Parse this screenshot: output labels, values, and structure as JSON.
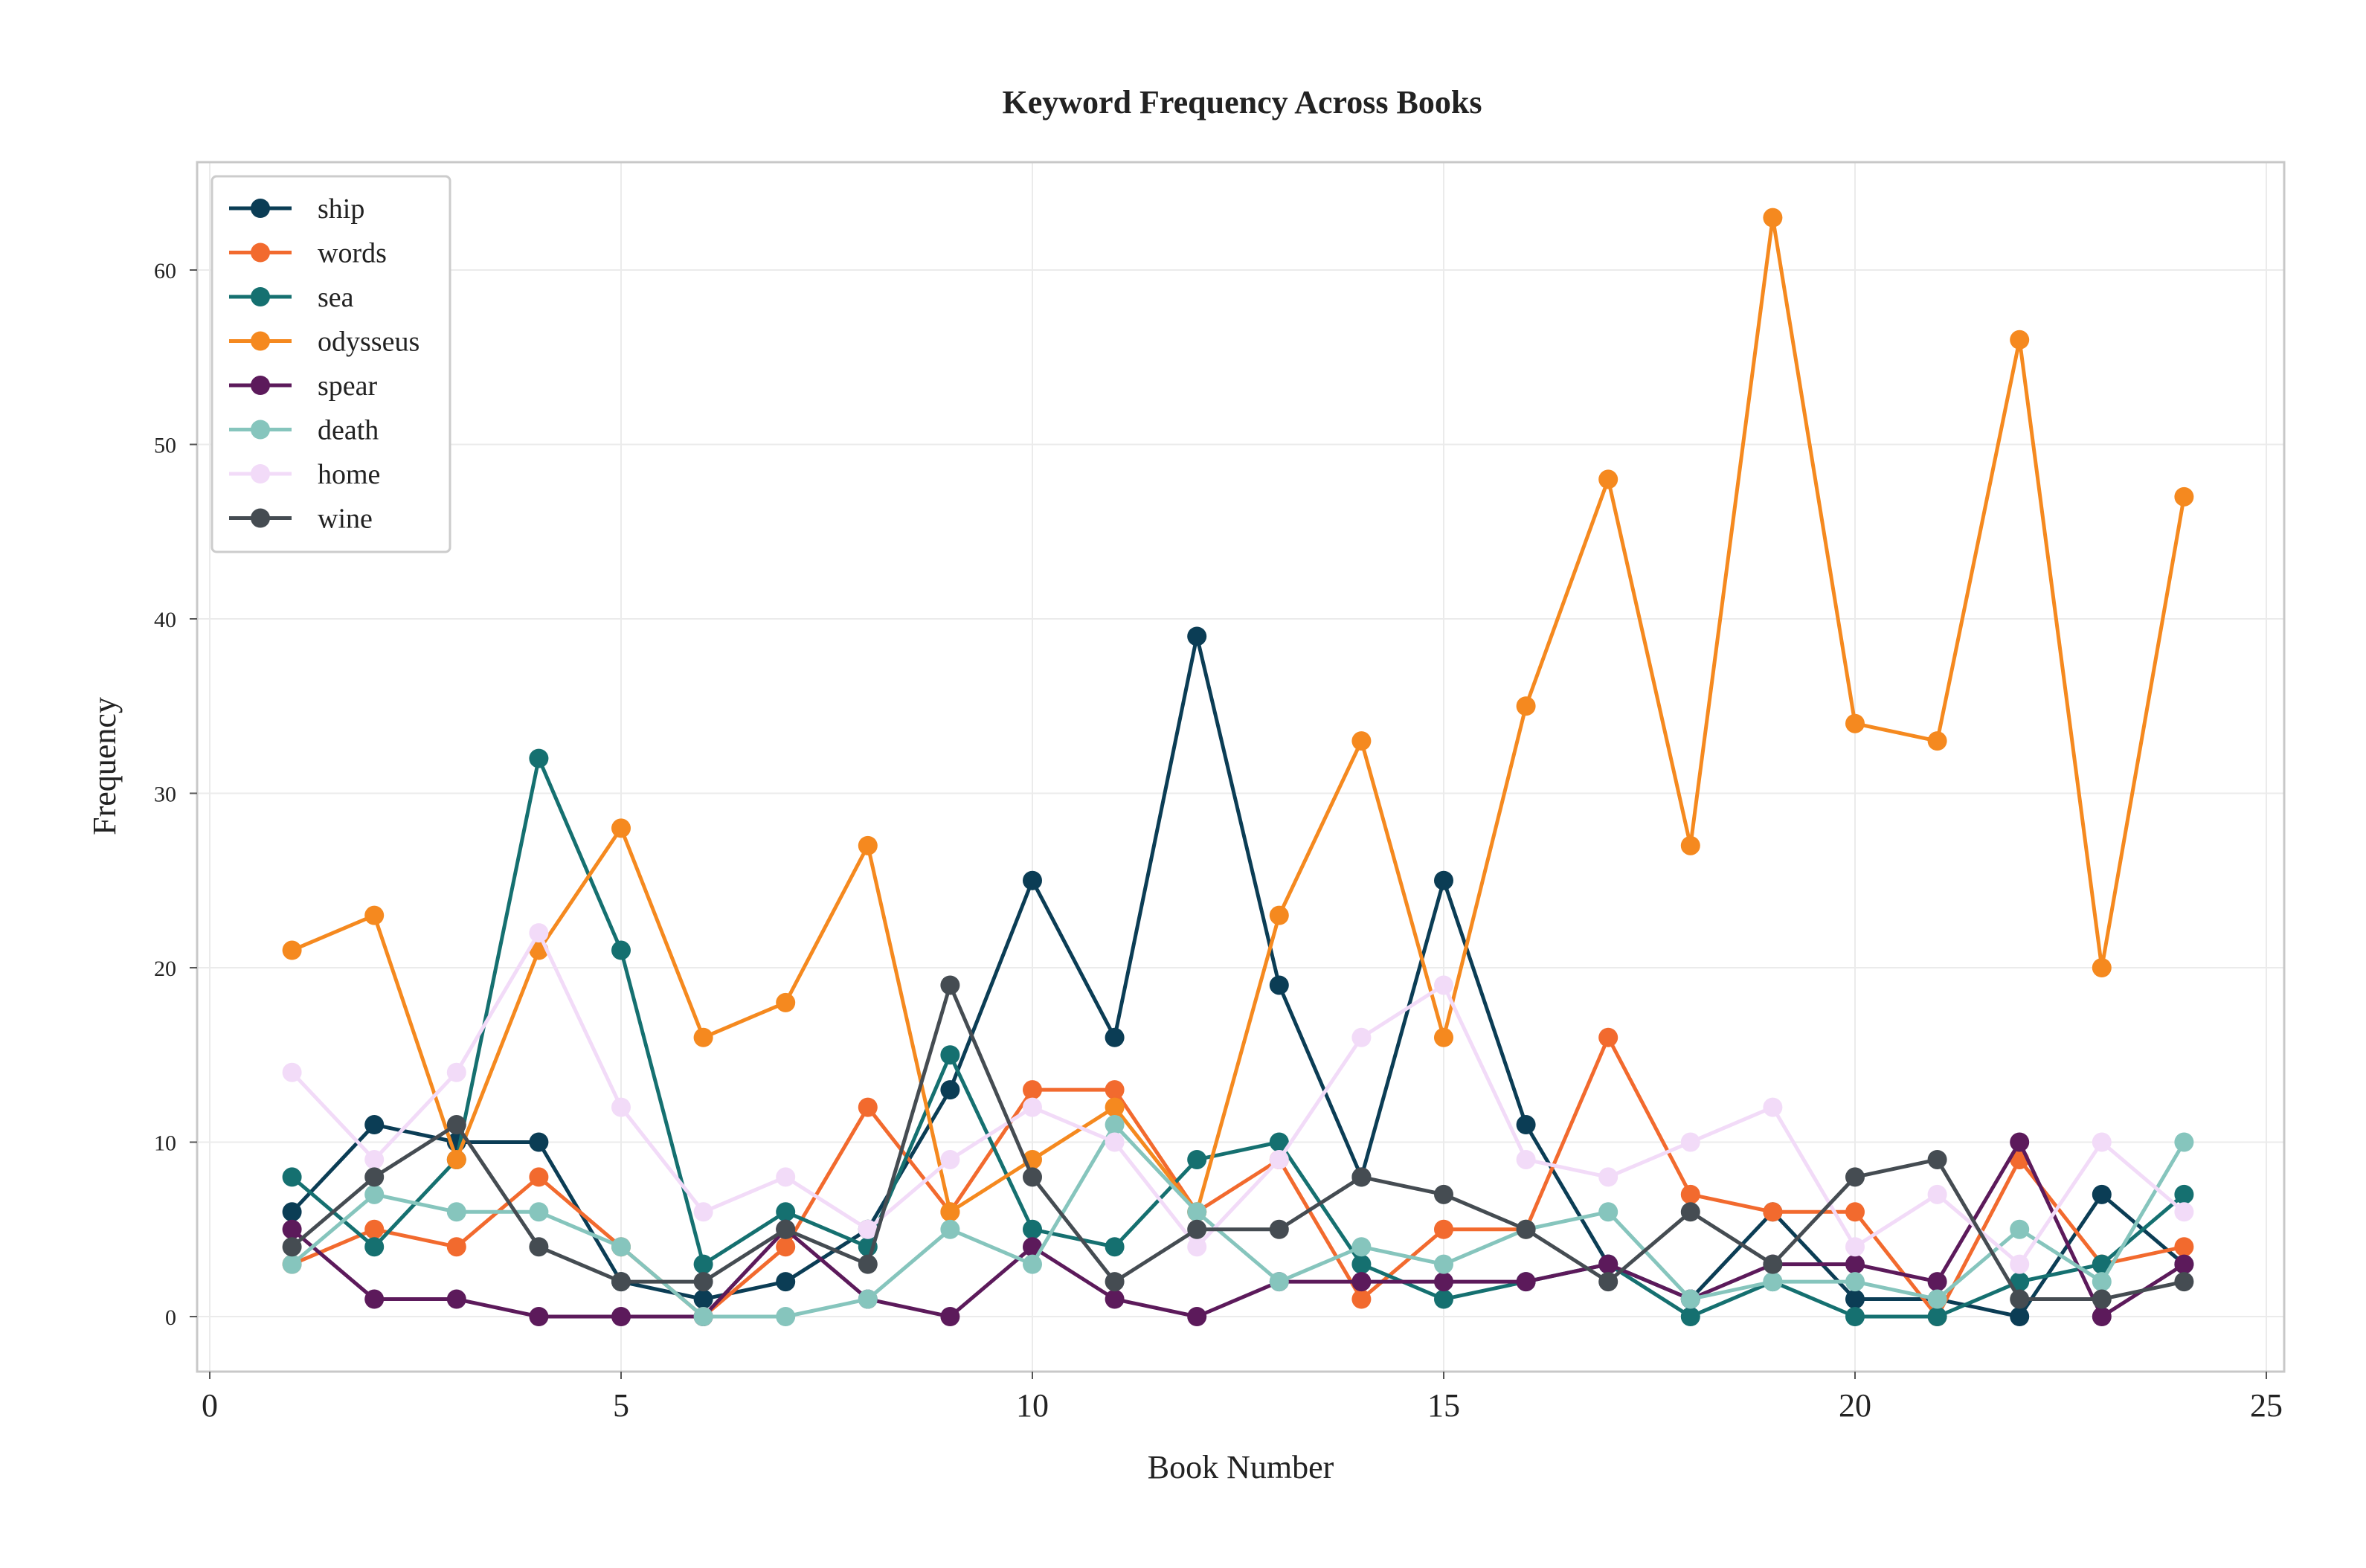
{
  "chart_data": {
    "type": "line",
    "title": "Keyword Frequency Across Books",
    "xlabel": "Book Number",
    "ylabel": "Frequency",
    "xlim": [
      0,
      25
    ],
    "ylim": [
      -3,
      66
    ],
    "xticks": [
      0,
      5,
      10,
      15,
      20,
      25
    ],
    "yticks": [
      0,
      10,
      20,
      30,
      40,
      50,
      60
    ],
    "grid": true,
    "legend_position": "top-left",
    "x": [
      1,
      2,
      3,
      4,
      5,
      6,
      7,
      8,
      9,
      10,
      11,
      12,
      13,
      14,
      15,
      16,
      17,
      18,
      19,
      20,
      21,
      22,
      23,
      24
    ],
    "series": [
      {
        "name": "ship",
        "color": "#0b3d55",
        "values": [
          6,
          11,
          10,
          10,
          2,
          1,
          2,
          5,
          13,
          25,
          16,
          39,
          19,
          8,
          25,
          11,
          3,
          1,
          6,
          1,
          1,
          0,
          7,
          3
        ]
      },
      {
        "name": "words",
        "color": "#f26a2e",
        "values": [
          3,
          5,
          4,
          8,
          4,
          0,
          4,
          12,
          6,
          13,
          13,
          6,
          9,
          1,
          5,
          5,
          16,
          7,
          6,
          6,
          0,
          9,
          3,
          4
        ]
      },
      {
        "name": "sea",
        "color": "#157070",
        "values": [
          8,
          4,
          9,
          32,
          21,
          3,
          6,
          4,
          15,
          5,
          4,
          9,
          10,
          3,
          1,
          2,
          3,
          0,
          2,
          0,
          0,
          2,
          3,
          7
        ]
      },
      {
        "name": "odysseus",
        "color": "#f5891f",
        "values": [
          21,
          23,
          9,
          21,
          28,
          16,
          18,
          27,
          6,
          9,
          12,
          6,
          23,
          33,
          16,
          35,
          48,
          27,
          63,
          34,
          33,
          56,
          20,
          47
        ]
      },
      {
        "name": "spear",
        "color": "#5c1a5b",
        "values": [
          5,
          1,
          1,
          0,
          0,
          0,
          5,
          1,
          0,
          4,
          1,
          0,
          2,
          2,
          2,
          2,
          3,
          1,
          3,
          3,
          2,
          10,
          0,
          3
        ]
      },
      {
        "name": "death",
        "color": "#86c5bd",
        "values": [
          3,
          7,
          6,
          6,
          4,
          0,
          0,
          1,
          5,
          3,
          11,
          6,
          2,
          4,
          3,
          5,
          6,
          1,
          2,
          2,
          1,
          5,
          2,
          10
        ]
      },
      {
        "name": "home",
        "color": "#f2dbf8",
        "values": [
          14,
          9,
          14,
          22,
          12,
          6,
          8,
          5,
          9,
          12,
          10,
          4,
          9,
          16,
          19,
          9,
          8,
          10,
          12,
          4,
          7,
          3,
          10,
          6
        ]
      },
      {
        "name": "wine",
        "color": "#454c52",
        "values": [
          4,
          8,
          11,
          4,
          2,
          2,
          5,
          3,
          19,
          8,
          2,
          5,
          5,
          8,
          7,
          5,
          2,
          6,
          3,
          8,
          9,
          1,
          1,
          2
        ]
      }
    ]
  }
}
